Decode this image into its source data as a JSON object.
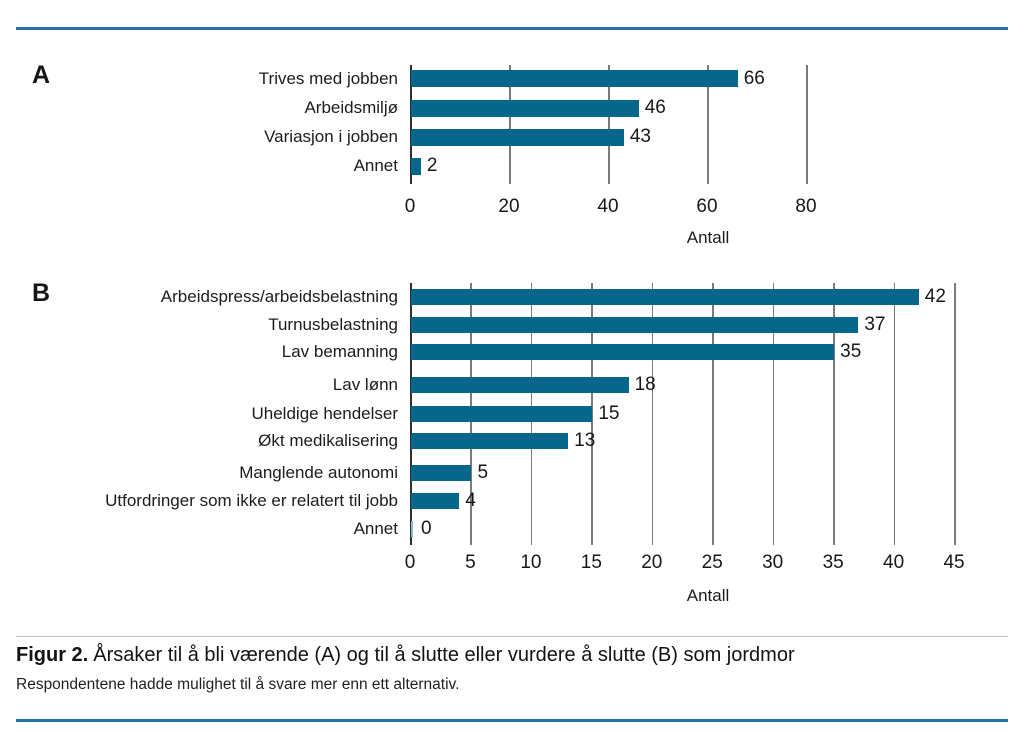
{
  "colors": {
    "bar": "#06678a",
    "zero_bar": "#8fb9cc",
    "accent_rule": "#2273aa",
    "gridline": "#7b7b7b",
    "axis": "#2e2e2e"
  },
  "chart_data": [
    {
      "panel": "A",
      "type": "bar",
      "orientation": "horizontal",
      "categories": [
        "Trives med jobben",
        "Arbeidsmiljø",
        "Variasjon i jobben",
        "Annet"
      ],
      "values": [
        66,
        46,
        43,
        2
      ],
      "xlabel": "Antall",
      "xticks": [
        0,
        20,
        40,
        60,
        80
      ],
      "xlim": [
        0,
        120
      ],
      "grid": "vertical",
      "legend": "none"
    },
    {
      "panel": "B",
      "type": "bar",
      "orientation": "horizontal",
      "categories": [
        "Arbeidspress/arbeidsbelastning",
        "Turnusbelastning",
        "Lav bemanning",
        "Lav lønn",
        "Uheldige hendelser",
        "Økt medikalisering",
        "Manglende autonomi",
        "Utfordringer som ikke er relatert til jobb",
        "Annet"
      ],
      "values": [
        42,
        37,
        35,
        18,
        15,
        13,
        5,
        4,
        0
      ],
      "xlabel": "Antall",
      "xticks": [
        0,
        5,
        10,
        15,
        20,
        25,
        30,
        35,
        40,
        45
      ],
      "xlim": [
        0,
        49
      ],
      "grid": "vertical",
      "legend": "none"
    }
  ],
  "caption": {
    "label": "Figur 2.",
    "text": "Årsaker til å bli værende (A) og til å slutte eller vurdere å slutte (B) som jordmor",
    "note": "Respondentene hadde mulighet til å svare mer enn ett alternativ."
  }
}
